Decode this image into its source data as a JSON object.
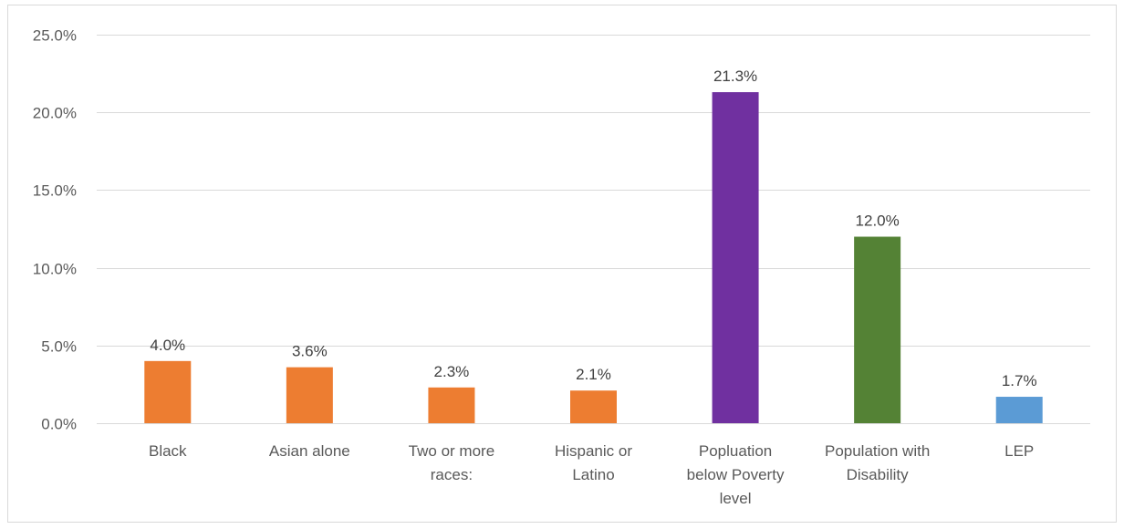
{
  "chart_data": {
    "type": "bar",
    "categories": [
      "Black",
      "Asian alone",
      "Two or more races:",
      "Hispanic or Latino",
      "Popluation below Poverty level",
      "Population with Disability",
      "LEP"
    ],
    "category_lines": [
      [
        "Black"
      ],
      [
        "Asian alone"
      ],
      [
        "Two or more",
        "races:"
      ],
      [
        "Hispanic or",
        "Latino"
      ],
      [
        "Popluation",
        "below Poverty",
        "level"
      ],
      [
        "Population with",
        "Disability"
      ],
      [
        "LEP"
      ]
    ],
    "values": [
      4.0,
      3.6,
      2.3,
      2.1,
      21.3,
      12.0,
      1.7
    ],
    "value_labels": [
      "4.0%",
      "3.6%",
      "2.3%",
      "2.1%",
      "21.3%",
      "12.0%",
      "1.7%"
    ],
    "bar_colors": [
      "#ED7D31",
      "#ED7D31",
      "#ED7D31",
      "#ED7D31",
      "#7030A0",
      "#548235",
      "#5B9BD5"
    ],
    "yticks": [
      0,
      5,
      10,
      15,
      20,
      25
    ],
    "ytick_labels": [
      "0.0%",
      "5.0%",
      "10.0%",
      "15.0%",
      "20.0%",
      "25.0%"
    ],
    "ylim": [
      0,
      25
    ],
    "grid": true,
    "legend": "none",
    "title": "",
    "xlabel": "",
    "ylabel": ""
  }
}
